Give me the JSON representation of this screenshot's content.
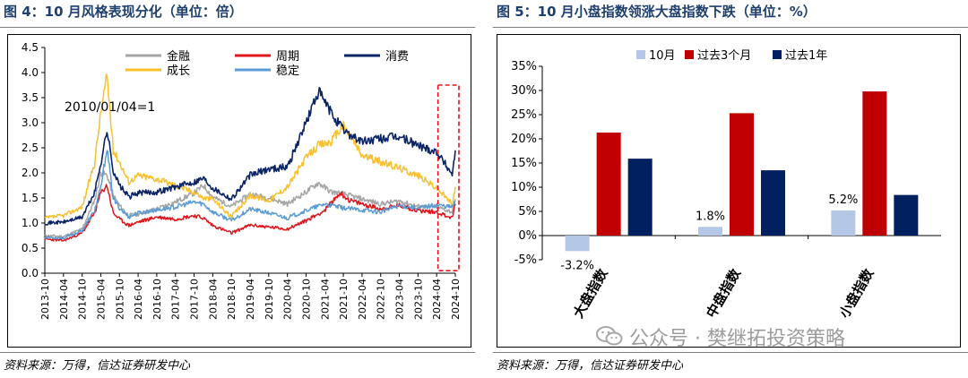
{
  "left": {
    "title": "图 4：10 月风格表现分化（单位：倍）",
    "source": "资料来源：万得，信达证券研发中心",
    "annotation": "2010/01/04=1",
    "chart_data": {
      "type": "line",
      "title": "图 4：10 月风格表现分化（单位：倍）",
      "ylim": [
        0,
        4.5
      ],
      "yticks": [
        "0.0",
        "0.5",
        "1.0",
        "1.5",
        "2.0",
        "2.5",
        "3.0",
        "3.5",
        "4.0",
        "4.5"
      ],
      "xticks": [
        "2013-10",
        "2014-04",
        "2014-10",
        "2015-04",
        "2015-10",
        "2016-04",
        "2016-10",
        "2017-04",
        "2017-10",
        "2018-04",
        "2018-10",
        "2019-04",
        "2019-10",
        "2020-04",
        "2020-10",
        "2021-04",
        "2021-10",
        "2022-04",
        "2022-10",
        "2023-04",
        "2023-10",
        "2024-04",
        "2024-10"
      ],
      "grid": false,
      "legend": "top",
      "highlight": {
        "x_start": "2024-05",
        "x_end": "2024-10",
        "y_start": 0.05,
        "y_end": 3.75,
        "style": "red dashed box"
      },
      "series": [
        {
          "name": "金融",
          "color": "#a5a5a5",
          "points": [
            [
              "2013-10",
              0.75
            ],
            [
              "2014-04",
              0.73
            ],
            [
              "2014-10",
              0.88
            ],
            [
              "2015-02",
              1.45
            ],
            [
              "2015-04",
              2.0
            ],
            [
              "2015-06",
              1.95
            ],
            [
              "2015-08",
              1.55
            ],
            [
              "2015-10",
              1.35
            ],
            [
              "2016-01",
              1.15
            ],
            [
              "2016-04",
              1.18
            ],
            [
              "2016-10",
              1.28
            ],
            [
              "2017-04",
              1.42
            ],
            [
              "2017-10",
              1.6
            ],
            [
              "2018-01",
              1.75
            ],
            [
              "2018-04",
              1.52
            ],
            [
              "2018-10",
              1.33
            ],
            [
              "2019-04",
              1.58
            ],
            [
              "2019-10",
              1.5
            ],
            [
              "2020-04",
              1.38
            ],
            [
              "2020-10",
              1.62
            ],
            [
              "2021-02",
              1.8
            ],
            [
              "2021-06",
              1.62
            ],
            [
              "2021-10",
              1.58
            ],
            [
              "2022-04",
              1.48
            ],
            [
              "2022-10",
              1.38
            ],
            [
              "2023-04",
              1.44
            ],
            [
              "2023-10",
              1.33
            ],
            [
              "2024-04",
              1.32
            ],
            [
              "2024-09",
              1.22
            ],
            [
              "2024-10",
              1.48
            ]
          ]
        },
        {
          "name": "周期",
          "color": "#e0161c",
          "points": [
            [
              "2013-10",
              0.68
            ],
            [
              "2014-04",
              0.65
            ],
            [
              "2014-10",
              0.8
            ],
            [
              "2015-02",
              1.2
            ],
            [
              "2015-04",
              1.6
            ],
            [
              "2015-06",
              1.75
            ],
            [
              "2015-08",
              1.2
            ],
            [
              "2015-10",
              1.08
            ],
            [
              "2016-01",
              0.95
            ],
            [
              "2016-04",
              1.02
            ],
            [
              "2016-10",
              1.12
            ],
            [
              "2017-04",
              1.08
            ],
            [
              "2017-10",
              1.15
            ],
            [
              "2018-01",
              1.1
            ],
            [
              "2018-04",
              0.95
            ],
            [
              "2018-10",
              0.8
            ],
            [
              "2019-04",
              0.96
            ],
            [
              "2019-10",
              0.92
            ],
            [
              "2020-04",
              0.88
            ],
            [
              "2020-10",
              1.05
            ],
            [
              "2021-04",
              1.25
            ],
            [
              "2021-09",
              1.6
            ],
            [
              "2021-12",
              1.45
            ],
            [
              "2022-04",
              1.38
            ],
            [
              "2022-10",
              1.28
            ],
            [
              "2023-04",
              1.35
            ],
            [
              "2023-10",
              1.25
            ],
            [
              "2024-04",
              1.22
            ],
            [
              "2024-09",
              1.1
            ],
            [
              "2024-10",
              1.38
            ]
          ]
        },
        {
          "name": "消费",
          "color": "#0b2466",
          "points": [
            [
              "2013-10",
              1.0
            ],
            [
              "2014-04",
              1.02
            ],
            [
              "2014-10",
              1.12
            ],
            [
              "2015-02",
              1.6
            ],
            [
              "2015-04",
              2.2
            ],
            [
              "2015-06",
              2.85
            ],
            [
              "2015-08",
              2.05
            ],
            [
              "2015-10",
              1.75
            ],
            [
              "2016-01",
              1.52
            ],
            [
              "2016-04",
              1.6
            ],
            [
              "2016-10",
              1.62
            ],
            [
              "2017-04",
              1.72
            ],
            [
              "2017-10",
              1.82
            ],
            [
              "2018-01",
              1.9
            ],
            [
              "2018-04",
              1.7
            ],
            [
              "2018-10",
              1.48
            ],
            [
              "2019-04",
              1.95
            ],
            [
              "2019-10",
              2.08
            ],
            [
              "2020-04",
              2.12
            ],
            [
              "2020-10",
              3.0
            ],
            [
              "2021-02",
              3.62
            ],
            [
              "2021-06",
              3.2
            ],
            [
              "2021-10",
              2.85
            ],
            [
              "2022-04",
              2.62
            ],
            [
              "2022-10",
              2.68
            ],
            [
              "2023-04",
              2.72
            ],
            [
              "2023-10",
              2.55
            ],
            [
              "2024-04",
              2.42
            ],
            [
              "2024-09",
              1.98
            ],
            [
              "2024-10",
              2.45
            ]
          ]
        },
        {
          "name": "成长",
          "color": "#fbc02d",
          "points": [
            [
              "2013-10",
              1.1
            ],
            [
              "2014-04",
              1.15
            ],
            [
              "2014-10",
              1.32
            ],
            [
              "2015-02",
              2.2
            ],
            [
              "2015-04",
              3.2
            ],
            [
              "2015-06",
              3.95
            ],
            [
              "2015-08",
              2.45
            ],
            [
              "2015-10",
              2.22
            ],
            [
              "2016-01",
              1.82
            ],
            [
              "2016-04",
              1.95
            ],
            [
              "2016-10",
              1.88
            ],
            [
              "2017-04",
              1.75
            ],
            [
              "2017-10",
              1.62
            ],
            [
              "2018-01",
              1.5
            ],
            [
              "2018-04",
              1.48
            ],
            [
              "2018-10",
              1.12
            ],
            [
              "2019-04",
              1.55
            ],
            [
              "2019-10",
              1.45
            ],
            [
              "2020-04",
              1.72
            ],
            [
              "2020-10",
              2.3
            ],
            [
              "2021-02",
              2.55
            ],
            [
              "2021-06",
              2.62
            ],
            [
              "2021-10",
              2.95
            ],
            [
              "2022-04",
              2.35
            ],
            [
              "2022-10",
              2.22
            ],
            [
              "2023-04",
              2.1
            ],
            [
              "2023-10",
              1.95
            ],
            [
              "2024-04",
              1.7
            ],
            [
              "2024-09",
              1.38
            ],
            [
              "2024-10",
              1.72
            ]
          ]
        },
        {
          "name": "稳定",
          "color": "#5b9bd5",
          "points": [
            [
              "2013-10",
              0.72
            ],
            [
              "2014-04",
              0.7
            ],
            [
              "2014-10",
              0.85
            ],
            [
              "2015-02",
              1.25
            ],
            [
              "2015-04",
              1.7
            ],
            [
              "2015-06",
              2.5
            ],
            [
              "2015-08",
              1.48
            ],
            [
              "2015-10",
              1.3
            ],
            [
              "2016-01",
              1.12
            ],
            [
              "2016-04",
              1.2
            ],
            [
              "2016-10",
              1.26
            ],
            [
              "2017-04",
              1.32
            ],
            [
              "2017-10",
              1.42
            ],
            [
              "2018-01",
              1.38
            ],
            [
              "2018-04",
              1.22
            ],
            [
              "2018-10",
              1.05
            ],
            [
              "2019-04",
              1.28
            ],
            [
              "2019-10",
              1.2
            ],
            [
              "2020-04",
              1.1
            ],
            [
              "2020-10",
              1.25
            ],
            [
              "2021-04",
              1.38
            ],
            [
              "2021-10",
              1.3
            ],
            [
              "2022-04",
              1.26
            ],
            [
              "2022-10",
              1.22
            ],
            [
              "2023-04",
              1.35
            ],
            [
              "2023-10",
              1.3
            ],
            [
              "2024-04",
              1.36
            ],
            [
              "2024-09",
              1.32
            ],
            [
              "2024-10",
              1.42
            ]
          ]
        }
      ]
    }
  },
  "right": {
    "title": "图 5：10 月小盘指数领涨大盘指数下跌（单位：%）",
    "source": "资料来源：万得，信达证券研发中心",
    "chart_data": {
      "type": "bar",
      "title": "图 5：10 月小盘指数领涨大盘指数下跌（单位：%）",
      "categories": [
        "大盘指数",
        "中盘指数",
        "小盘指数"
      ],
      "ylim": [
        -5,
        35
      ],
      "yticks": [
        "-5%",
        "0%",
        "5%",
        "10%",
        "15%",
        "20%",
        "25%",
        "30%",
        "35%"
      ],
      "grid": false,
      "legend": "top",
      "series": [
        {
          "name": "10月",
          "color": "#b4c7e7",
          "values": [
            -3.2,
            1.8,
            5.2
          ],
          "labels": [
            "-3.2%",
            "1.8%",
            "5.2%"
          ]
        },
        {
          "name": "过去3个月",
          "color": "#c00000",
          "values": [
            21.3,
            25.3,
            29.8
          ]
        },
        {
          "name": "过去1年",
          "color": "#002060",
          "values": [
            15.9,
            13.5,
            8.4
          ]
        }
      ]
    }
  },
  "watermark": "公众号 · 樊继拓投资策略"
}
